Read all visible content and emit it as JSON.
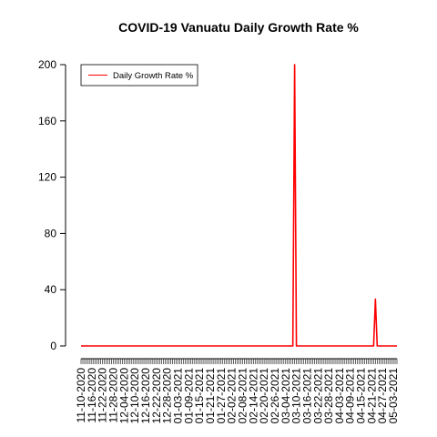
{
  "chart_data": {
    "type": "line",
    "title": "COVID-19 Vanuatu Daily Growth Rate %",
    "xlabel": "",
    "ylabel": "",
    "ylim": [
      0,
      200
    ],
    "y_ticks": [
      0,
      40,
      80,
      120,
      160,
      200
    ],
    "x_start_date": "11-10-2020",
    "x_tick_labels": [
      "11-10-2020",
      "11-16-2020",
      "11-22-2020",
      "11-28-2020",
      "12-04-2020",
      "12-10-2020",
      "12-16-2020",
      "12-22-2020",
      "12-28-2020",
      "01-03-2021",
      "01-09-2021",
      "01-15-2021",
      "01-21-2021",
      "01-27-2021",
      "02-02-2021",
      "02-08-2021",
      "02-14-2021",
      "02-20-2021",
      "02-26-2021",
      "03-04-2021",
      "03-10-2021",
      "03-16-2021",
      "03-22-2021",
      "03-28-2021",
      "04-03-2021",
      "04-09-2021",
      "04-15-2021",
      "04-21-2021",
      "04-27-2021",
      "05-03-2021"
    ],
    "x_end_date": "05-05-2021",
    "series": [
      {
        "name": "Daily Growth Rate %",
        "color": "#ff0000",
        "points": [
          {
            "x": "11-10-2020",
            "y": 0
          },
          {
            "x": "03-08-2021",
            "y": 0
          },
          {
            "x": "03-09-2021",
            "y": 200
          },
          {
            "x": "03-10-2021",
            "y": 0
          },
          {
            "x": "04-22-2021",
            "y": 0
          },
          {
            "x": "04-23-2021",
            "y": 33.3
          },
          {
            "x": "04-24-2021",
            "y": 0
          },
          {
            "x": "05-05-2021",
            "y": 0
          }
        ]
      }
    ],
    "legend": {
      "position": "top-left",
      "entries": [
        "Daily Growth Rate %"
      ]
    },
    "grid": false
  }
}
